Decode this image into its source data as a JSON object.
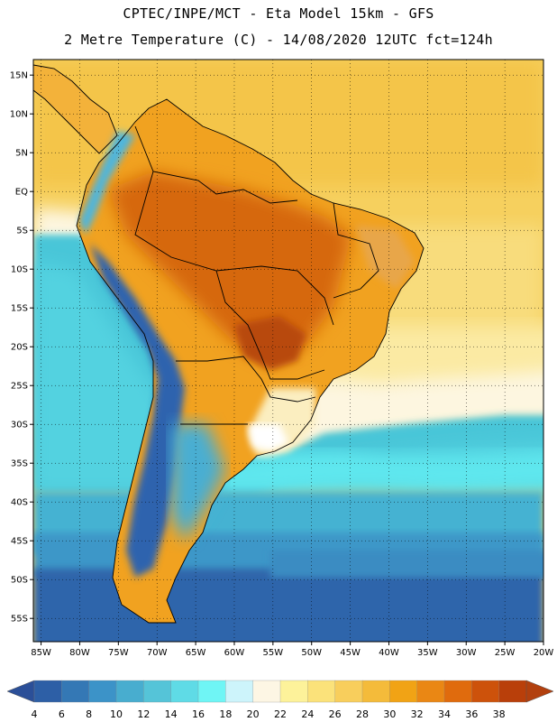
{
  "header": {
    "line1": "CPTEC/INPE/MCT -  Eta Model 15km - GFS",
    "line2": "2 Metre Temperature (C) - 14/08/2020 12UTC fct=124h"
  },
  "map": {
    "lat_range": [
      -58,
      17
    ],
    "lon_range": [
      -86,
      -20
    ],
    "lat_labels": [
      "15N",
      "10N",
      "5N",
      "EQ",
      "5S",
      "10S",
      "15S",
      "20S",
      "25S",
      "30S",
      "35S",
      "40S",
      "45S",
      "50S",
      "55S"
    ],
    "lat_values": [
      15,
      10,
      5,
      0,
      -5,
      -10,
      -15,
      -20,
      -25,
      -30,
      -35,
      -40,
      -45,
      -50,
      -55
    ],
    "lon_labels": [
      "85W",
      "80W",
      "75W",
      "70W",
      "65W",
      "60W",
      "55W",
      "50W",
      "45W",
      "40W",
      "35W",
      "30W",
      "25W",
      "20W"
    ],
    "lon_values": [
      -85,
      -80,
      -75,
      -70,
      -65,
      -60,
      -55,
      -50,
      -45,
      -40,
      -35,
      -30,
      -25,
      -20
    ],
    "gridlines": "dotted"
  },
  "colorbar": {
    "labels": [
      "4",
      "6",
      "8",
      "10",
      "12",
      "14",
      "16",
      "18",
      "20",
      "22",
      "24",
      "26",
      "28",
      "30",
      "32",
      "34",
      "36",
      "38"
    ],
    "colors": [
      "#2d5fa6",
      "#3478b5",
      "#3c93c8",
      "#48adcf",
      "#55c4d8",
      "#5fdbe6",
      "#6ff5f5",
      "#cdf4fb",
      "#fdf6e4",
      "#fdf29a",
      "#fbe27a",
      "#f8ce5c",
      "#f4bb3a",
      "#f1a315",
      "#ea8714",
      "#e06b0d",
      "#cd520b",
      "#b93f0a"
    ],
    "low_color": "#2b4f98",
    "high_color": "#b2400e"
  }
}
